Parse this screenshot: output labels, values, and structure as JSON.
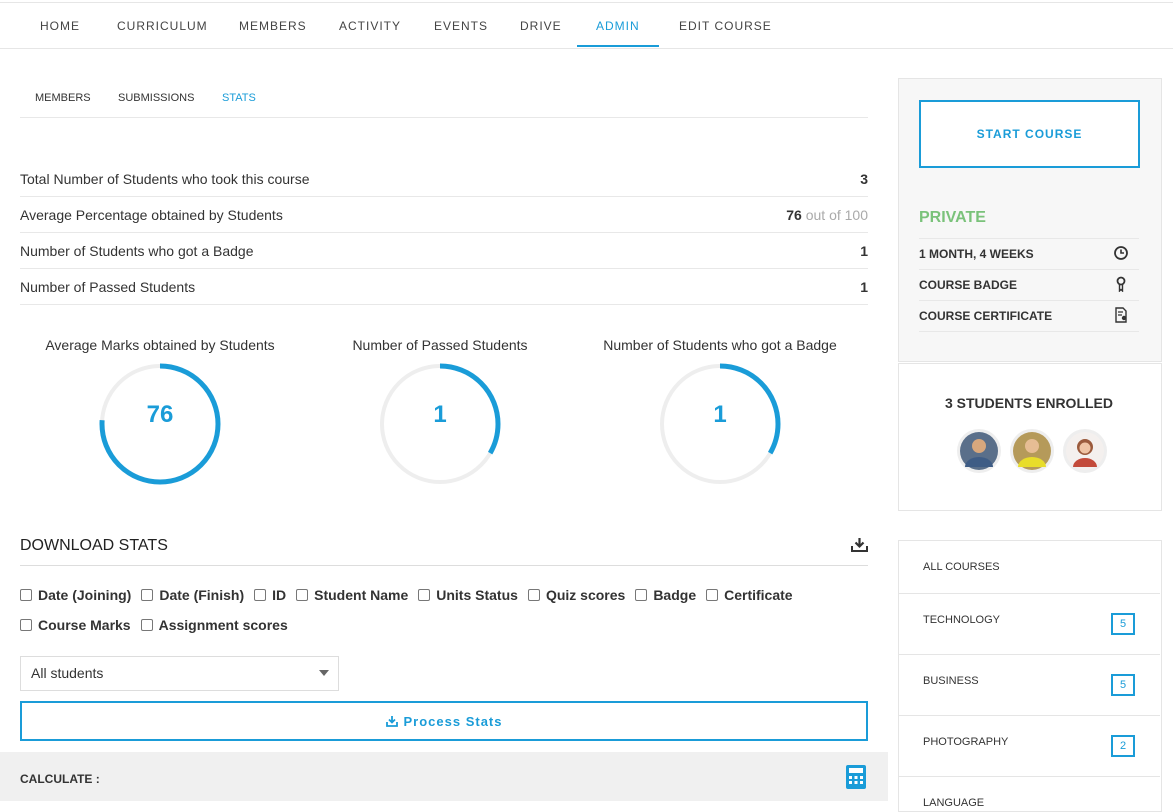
{
  "nav": {
    "items": [
      "HOME",
      "CURRICULUM",
      "MEMBERS",
      "ACTIVITY",
      "EVENTS",
      "DRIVE",
      "ADMIN",
      "EDIT COURSE"
    ],
    "active": 6
  },
  "subtabs": {
    "items": [
      "MEMBERS",
      "SUBMISSIONS",
      "STATS"
    ],
    "active": 2
  },
  "stats": [
    {
      "label": "Total Number of Students who took this course",
      "value": 3
    },
    {
      "label": "Average Percentage obtained by Students",
      "value": 76,
      "out_of_label": "out of",
      "out_of": 100
    },
    {
      "label": "Number of Students who got a Badge",
      "value": 1
    },
    {
      "label": "Number of Passed Students",
      "value": 1
    }
  ],
  "gauges": [
    {
      "title": "Average Marks obtained by Students",
      "value": 76
    },
    {
      "title": "Number of Passed Students",
      "value": 1
    },
    {
      "title": "Number of Students who got a Badge",
      "value": 1
    }
  ],
  "download": {
    "title": "DOWNLOAD STATS",
    "fields": [
      "Date (Joining)",
      "Date (Finish)",
      "ID",
      "Student Name",
      "Units Status",
      "Quiz scores",
      "Badge",
      "Certificate",
      "Course Marks",
      "Assignment scores"
    ],
    "select": "All students",
    "button": "Process Stats",
    "calculate": "CALCULATE :"
  },
  "sidebar": {
    "button": "START COURSE",
    "status": "PRIVATE",
    "details": [
      "1 MONTH, 4 WEEKS",
      "COURSE BADGE",
      "COURSE CERTIFICATE"
    ],
    "enrolled": "3 STUDENTS ENROLLED",
    "categories_title": "ALL COURSES",
    "categories": [
      {
        "name": "TECHNOLOGY",
        "count": 5
      },
      {
        "name": "BUSINESS",
        "count": 5
      },
      {
        "name": "PHOTOGRAPHY",
        "count": 2
      },
      {
        "name": "LANGUAGE"
      }
    ]
  }
}
